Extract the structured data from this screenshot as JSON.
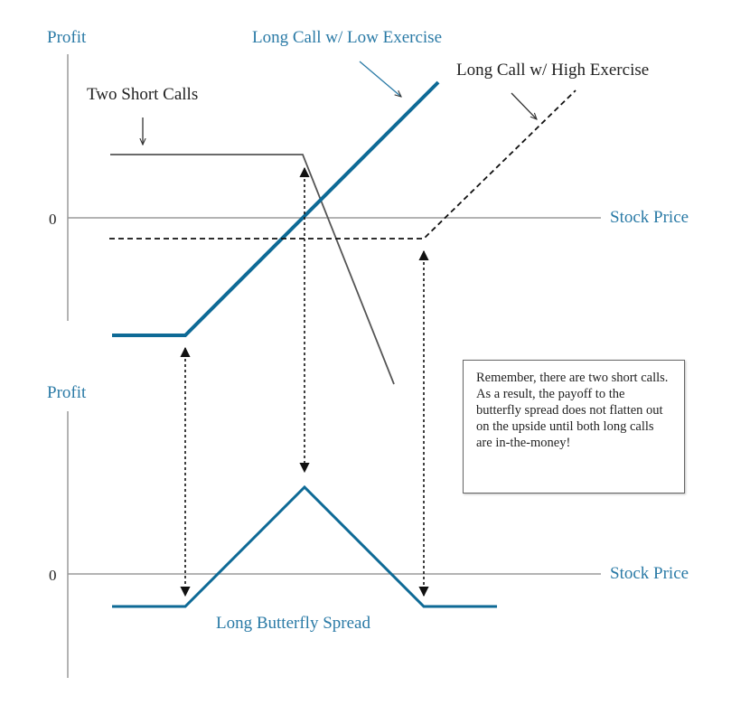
{
  "colors": {
    "accent_blue": "#0e6a96",
    "label_blue": "#2a7aa6",
    "axis_gray": "#9a9a9a",
    "line_dark": "#555555",
    "text_dark": "#222222"
  },
  "top_panel": {
    "y_axis_label": "Profit",
    "zero_label": "0",
    "x_axis_label": "Stock Price",
    "short_calls_label": "Two Short Calls",
    "low_exercise_label": "Long Call w/ Low Exercise",
    "high_exercise_label": "Long Call w/ High Exercise"
  },
  "bottom_panel": {
    "y_axis_label": "Profit",
    "zero_label": "0",
    "x_axis_label": "Stock Price",
    "payoff_label": "Long Butterfly Spread"
  },
  "note": {
    "text": "Remember, there are two short calls. As a result, the payoff to the butterfly spread does not flatten out on the upside until both long calls are in-the-money!"
  }
}
